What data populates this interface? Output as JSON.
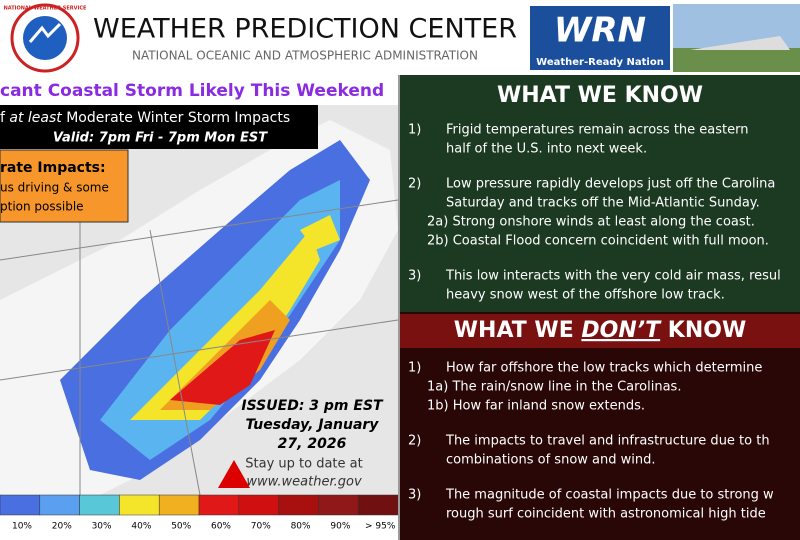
{
  "header": {
    "seal": "NATIONAL WEATHER SERVICE",
    "title": "WEATHER PREDICTION CENTER",
    "subtitle": "NATIONAL OCEANIC AND ATMOSPHERIC ADMINISTRATION",
    "wrn_logo": "WRN",
    "wrn_caption": "Weather-Ready Nation"
  },
  "left": {
    "headline": "cant Coastal Storm Likely This Weekend",
    "impacts_title": [
      "f ",
      "at least",
      " Moderate Winter Storm Impacts"
    ],
    "valid": "Valid: 7pm Fri - 7pm Mon EST",
    "impact_box": [
      "rate Impacts:",
      "us driving & some",
      "ption possible"
    ],
    "issued": [
      "ISSUED: 3 pm EST",
      "Tuesday, January",
      "27, 2026"
    ],
    "stay": [
      "Stay up to date at",
      "www.weather.gov"
    ],
    "legend": [
      "10%",
      "20%",
      "30%",
      "40%",
      "50%",
      "60%",
      "70%",
      "80%",
      "90%",
      "> 95%"
    ]
  },
  "know": {
    "title": "WHAT WE KNOW",
    "items": [
      {
        "num": "1)",
        "lines": [
          "Frigid temperatures remain across the eastern",
          "half of the U.S. into next week."
        ]
      },
      {
        "num": "2)",
        "lines": [
          "Low pressure rapidly develops just off the Carolina",
          "Saturday and tracks off the Mid-Atlantic Sunday."
        ],
        "subs": [
          "2a) Strong onshore winds at least along the coast.",
          "2b) Coastal Flood concern coincident with full moon."
        ]
      },
      {
        "num": "3)",
        "lines": [
          "This low interacts with the very cold air mass, resul",
          "heavy snow west of the offshore low track."
        ]
      }
    ]
  },
  "dont_know": {
    "title": [
      "WHAT WE ",
      "DON’T",
      " KNOW"
    ],
    "items": [
      {
        "num": "1)",
        "lines": [
          "How far offshore the low tracks which determine"
        ],
        "subs": [
          "1a) The rain/snow line in the Carolinas.",
          "1b) How far inland snow extends."
        ]
      },
      {
        "num": "2)",
        "lines": [
          "The impacts to travel and infrastructure due to th",
          "combinations of snow and wind."
        ]
      },
      {
        "num": "3)",
        "lines": [
          "The magnitude of coastal impacts due to strong w",
          "rough surf coincident with astronomical high tide"
        ]
      }
    ]
  }
}
